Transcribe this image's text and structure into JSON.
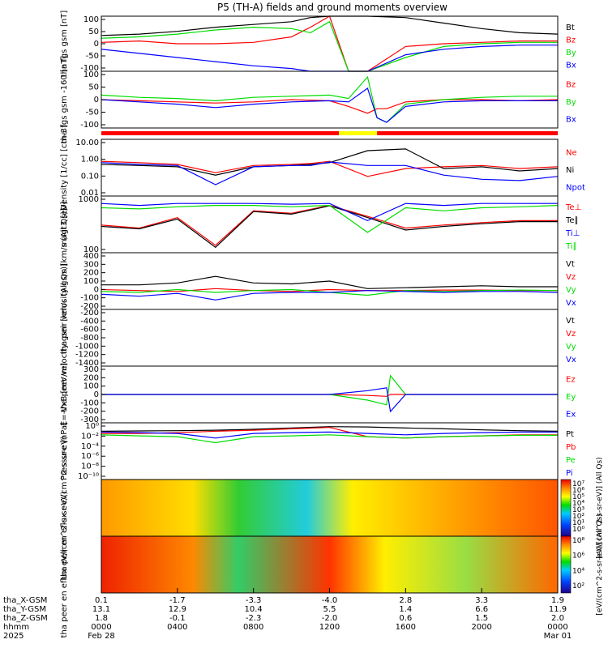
{
  "title": "P5 (TH-A) fields and ground moments overview",
  "colors": {
    "black": "#000000",
    "red": "#ff0000",
    "green": "#00dd00",
    "blue": "#0000ff",
    "yellow": "#ffff00",
    "white": "#ffffff"
  },
  "chart_data": [
    {
      "type": "line",
      "id": "fgs",
      "ylabel": "tha fgs gsm [nT]",
      "yticks": [
        "100",
        "50",
        "0",
        "-50",
        "-100"
      ],
      "ylim": [
        -100,
        100
      ],
      "series": [
        {
          "name": "Bt",
          "color": "#000000",
          "x": [
            0,
            2,
            4,
            6,
            8,
            10,
            11,
            12,
            13,
            14,
            16,
            18,
            20,
            22,
            24
          ],
          "values": [
            30,
            35,
            45,
            60,
            70,
            80,
            95,
            100,
            100,
            100,
            95,
            75,
            55,
            40,
            35
          ]
        },
        {
          "name": "Bz",
          "color": "#ff0000",
          "x": [
            0,
            2,
            4,
            6,
            8,
            10,
            11,
            12,
            13,
            14,
            16,
            18,
            20,
            22,
            24
          ],
          "values": [
            5,
            10,
            0,
            0,
            5,
            25,
            60,
            100,
            -100,
            -100,
            -10,
            0,
            5,
            10,
            10
          ]
        },
        {
          "name": "By",
          "color": "#00dd00",
          "x": [
            0,
            2,
            4,
            6,
            8,
            10,
            11,
            12,
            13,
            14,
            16,
            18,
            20,
            22,
            24
          ],
          "values": [
            20,
            25,
            35,
            50,
            60,
            55,
            40,
            80,
            -100,
            -100,
            -50,
            -10,
            0,
            5,
            5
          ]
        },
        {
          "name": "Bx",
          "color": "#0000ff",
          "x": [
            0,
            2,
            4,
            6,
            8,
            10,
            11,
            12,
            13,
            14,
            16,
            18,
            20,
            22,
            24
          ],
          "values": [
            -20,
            -35,
            -50,
            -65,
            -80,
            -90,
            -100,
            -100,
            -100,
            -100,
            -40,
            -20,
            -10,
            -5,
            -5
          ]
        }
      ]
    },
    {
      "type": "line",
      "id": "fgs_dsl",
      "ylabel": "tha fgs gsm -160 [nT]",
      "yticks": [
        "100",
        "50",
        "0",
        "-50",
        "-100"
      ],
      "ylim": [
        -125,
        125
      ],
      "series": [
        {
          "name": "Bz",
          "color": "#ff0000",
          "x": [
            0,
            2,
            4,
            6,
            8,
            10,
            12,
            13,
            14,
            14.5,
            15,
            16,
            18,
            20,
            22,
            24
          ],
          "values": [
            0,
            -5,
            -10,
            -15,
            -10,
            0,
            -5,
            -30,
            -60,
            -40,
            -40,
            -10,
            0,
            0,
            -5,
            0
          ]
        },
        {
          "name": "By",
          "color": "#00dd00",
          "x": [
            0,
            2,
            4,
            6,
            8,
            10,
            12,
            13,
            14,
            14.5,
            15,
            16,
            18,
            20,
            22,
            24
          ],
          "values": [
            20,
            10,
            5,
            -5,
            10,
            15,
            20,
            5,
            100,
            -80,
            -100,
            -20,
            0,
            10,
            15,
            15
          ]
        },
        {
          "name": "Bx",
          "color": "#0000ff",
          "x": [
            0,
            2,
            4,
            6,
            8,
            10,
            12,
            13,
            14,
            14.5,
            15,
            16,
            18,
            20,
            22,
            24
          ],
          "values": [
            0,
            -10,
            -20,
            -35,
            -20,
            -10,
            -5,
            -10,
            50,
            -80,
            -100,
            -30,
            -10,
            -5,
            -5,
            -5
          ]
        }
      ]
    },
    {
      "type": "line",
      "id": "density",
      "log": true,
      "ylabel": "Density [1/cc] [cm-3]",
      "yticks": [
        "10.00",
        "1.00",
        "0.10",
        "0.01"
      ],
      "ylim": [
        0.003,
        40
      ],
      "series": [
        {
          "name": "Ne",
          "color": "#ff0000",
          "x": [
            0,
            2,
            4,
            6,
            8,
            10,
            11,
            12,
            14,
            16,
            18,
            20,
            22,
            24
          ],
          "values": [
            1.0,
            0.8,
            0.6,
            0.15,
            0.5,
            0.6,
            0.7,
            1.0,
            0.08,
            0.3,
            0.4,
            0.5,
            0.3,
            0.4
          ]
        },
        {
          "name": "Ni",
          "color": "#000000",
          "x": [
            0,
            2,
            4,
            6,
            8,
            10,
            11,
            12,
            14,
            16,
            18,
            20,
            22,
            24
          ],
          "values": [
            0.6,
            0.5,
            0.4,
            0.1,
            0.4,
            0.5,
            0.6,
            0.8,
            6.0,
            8.0,
            0.3,
            0.4,
            0.2,
            0.3
          ]
        },
        {
          "name": "Npot",
          "color": "#0000ff",
          "x": [
            0,
            2,
            4,
            6,
            8,
            10,
            11,
            12,
            14,
            16,
            18,
            20,
            22,
            24
          ],
          "values": [
            0.8,
            0.6,
            0.5,
            0.02,
            0.4,
            0.5,
            0.5,
            0.9,
            0.5,
            0.5,
            0.1,
            0.05,
            0.04,
            0.08
          ]
        }
      ]
    },
    {
      "type": "line",
      "id": "temperature",
      "log": true,
      "ylabel": "magt3 [eV]",
      "yticks": [
        "1000",
        "100"
      ],
      "ylim": [
        30,
        6000
      ],
      "series": [
        {
          "name": "Te⊥",
          "color": "#ff0000",
          "x": [
            0,
            2,
            4,
            6,
            8,
            10,
            12,
            14,
            16,
            18,
            20,
            22,
            24
          ],
          "values": [
            400,
            300,
            800,
            60,
            1500,
            1200,
            2500,
            900,
            300,
            400,
            500,
            600,
            600
          ]
        },
        {
          "name": "Te∥",
          "color": "#000000",
          "x": [
            0,
            2,
            4,
            6,
            8,
            10,
            12,
            14,
            16,
            18,
            20,
            22,
            24
          ],
          "values": [
            350,
            280,
            700,
            50,
            1400,
            1100,
            2400,
            800,
            250,
            350,
            450,
            550,
            550
          ]
        },
        {
          "name": "Ti⊥",
          "color": "#0000ff",
          "x": [
            0,
            2,
            4,
            6,
            8,
            10,
            12,
            14,
            16,
            18,
            20,
            22,
            24
          ],
          "values": [
            3000,
            2500,
            3000,
            3000,
            3000,
            2800,
            3000,
            600,
            3000,
            2500,
            3000,
            3000,
            3000
          ]
        },
        {
          "name": "Ti∥",
          "color": "#00dd00",
          "x": [
            0,
            2,
            4,
            6,
            8,
            10,
            12,
            14,
            16,
            18,
            20,
            22,
            24
          ],
          "values": [
            2000,
            1800,
            2200,
            2500,
            2500,
            2200,
            2500,
            200,
            2000,
            1500,
            2000,
            2200,
            2500
          ]
        }
      ]
    },
    {
      "type": "line",
      "id": "peir_velocity",
      "ylabel": "tha peir velocity gsm [km/s (All Qs)]",
      "yticks": [
        "400",
        "300",
        "200",
        "100",
        "0",
        "-100",
        "-200"
      ],
      "ylim": [
        -200,
        400
      ],
      "series": [
        {
          "name": "Vt",
          "color": "#000000",
          "x": [
            0,
            2,
            4,
            6,
            8,
            10,
            12,
            14,
            16,
            18,
            20,
            22,
            24
          ],
          "values": [
            60,
            60,
            80,
            150,
            80,
            70,
            100,
            20,
            30,
            40,
            50,
            40,
            40
          ]
        },
        {
          "name": "Vz",
          "color": "#ff0000",
          "x": [
            0,
            2,
            4,
            6,
            8,
            10,
            12,
            14,
            16,
            18,
            20,
            22,
            24
          ],
          "values": [
            10,
            0,
            -10,
            20,
            0,
            -10,
            10,
            0,
            0,
            5,
            5,
            0,
            0
          ]
        },
        {
          "name": "Vy",
          "color": "#00dd00",
          "x": [
            0,
            2,
            4,
            6,
            8,
            10,
            12,
            14,
            16,
            18,
            20,
            22,
            24
          ],
          "values": [
            -10,
            -20,
            10,
            -20,
            0,
            10,
            -20,
            -50,
            0,
            -10,
            0,
            5,
            0
          ]
        },
        {
          "name": "Vx",
          "color": "#0000ff",
          "x": [
            0,
            2,
            4,
            6,
            8,
            10,
            12,
            14,
            16,
            18,
            20,
            22,
            24
          ],
          "values": [
            -40,
            -60,
            -30,
            -100,
            -30,
            -20,
            -20,
            0,
            -10,
            -20,
            -10,
            -10,
            -20
          ]
        }
      ]
    },
    {
      "type": "line",
      "id": "peer_velocity",
      "ylabel": "tha peer velocity gsm [km/s (All Qs)]",
      "yticks": [
        "-200",
        "-400",
        "-600",
        "-800",
        "-1000",
        "-1200",
        "-1400"
      ],
      "ylim": [
        -1400,
        -100
      ],
      "series": [
        {
          "name": "Vt",
          "color": "#000000",
          "x": [],
          "values": []
        },
        {
          "name": "Vz",
          "color": "#ff0000",
          "x": [],
          "values": []
        },
        {
          "name": "Vy",
          "color": "#00dd00",
          "x": [],
          "values": []
        },
        {
          "name": "Vx",
          "color": "#0000ff",
          "x": [],
          "values": []
        }
      ]
    },
    {
      "type": "line",
      "id": "efield",
      "ylabel": "E=-VxB [mV/m]",
      "yticks": [
        "300",
        "200",
        "100",
        "0",
        "-100",
        "-200",
        "-300"
      ],
      "ylim": [
        -300,
        300
      ],
      "series": [
        {
          "name": "Ez",
          "color": "#ff0000",
          "x": [
            0,
            4,
            8,
            12,
            14,
            15,
            15.2,
            16,
            20,
            24
          ],
          "values": [
            0,
            0,
            0,
            0,
            -10,
            -20,
            0,
            0,
            0,
            0
          ]
        },
        {
          "name": "Ey",
          "color": "#00dd00",
          "x": [
            0,
            4,
            8,
            12,
            14,
            15,
            15.2,
            16,
            20,
            24
          ],
          "values": [
            0,
            0,
            0,
            0,
            -60,
            -110,
            200,
            0,
            0,
            0
          ]
        },
        {
          "name": "Ex",
          "color": "#0000ff",
          "x": [
            0,
            4,
            8,
            12,
            14,
            15,
            15.2,
            16,
            20,
            24
          ],
          "values": [
            0,
            0,
            0,
            0,
            40,
            70,
            -180,
            0,
            0,
            0
          ]
        }
      ]
    },
    {
      "type": "line",
      "id": "pressure",
      "log": true,
      "ylabel": "Pressure [nPa]",
      "yticks": [
        "10⁰",
        "10⁻²",
        "10⁻⁴",
        "10⁻⁶",
        "10⁻⁸",
        "10⁻¹⁰"
      ],
      "ylim": [
        1e-11,
        20
      ],
      "series": [
        {
          "name": "Pt",
          "color": "#000000",
          "x": [
            0,
            2,
            4,
            6,
            8,
            10,
            12,
            14,
            16,
            18,
            20,
            22,
            24
          ],
          "values": [
            0.3,
            0.35,
            0.4,
            0.5,
            0.8,
            1.5,
            3,
            2.5,
            1.5,
            1.0,
            0.6,
            0.4,
            0.3
          ]
        },
        {
          "name": "Pb",
          "color": "#ff0000",
          "x": [
            0,
            2,
            4,
            6,
            8,
            10,
            12,
            14,
            16,
            18,
            20,
            22,
            24
          ],
          "values": [
            0.1,
            0.1,
            0.15,
            0.3,
            0.5,
            1.0,
            2.0,
            0.02,
            0.01,
            0.02,
            0.03,
            0.05,
            0.05
          ]
        },
        {
          "name": "Pe",
          "color": "#00dd00",
          "x": [
            0,
            2,
            4,
            6,
            8,
            10,
            12,
            14,
            16,
            18,
            20,
            22,
            24
          ],
          "values": [
            0.05,
            0.03,
            0.02,
            0.001,
            0.02,
            0.03,
            0.05,
            0.02,
            0.01,
            0.02,
            0.03,
            0.04,
            0.04
          ]
        },
        {
          "name": "Pi",
          "color": "#0000ff",
          "x": [
            0,
            2,
            4,
            6,
            8,
            10,
            12,
            14,
            16,
            18,
            20,
            22,
            24
          ],
          "values": [
            0.2,
            0.15,
            0.1,
            0.01,
            0.1,
            0.15,
            0.2,
            0.1,
            0.05,
            0.1,
            0.15,
            0.2,
            0.2
          ]
        }
      ]
    },
    {
      "type": "heatmap",
      "id": "peir_eflux",
      "ylabel": "tha peir en eflux eV/(cm^2-s-sr-eV)",
      "yticks": [
        "10000",
        "1000",
        "100",
        "10"
      ],
      "colorbar_ticks": [
        "10⁷",
        "10⁶",
        "10⁵",
        "10⁴",
        "10³",
        "10²",
        "10¹",
        "10⁰"
      ],
      "colorbar_label": "[eV/(cm^2-s-sr-eV)] (All Qs)"
    },
    {
      "type": "heatmap",
      "id": "peer_eflux",
      "ylabel": "tha peer en eflux eV/(cm^2-s-sr-eV)",
      "yticks": [
        "10000",
        "1000",
        "100",
        "10"
      ],
      "colorbar_ticks": [
        "10⁸",
        "10⁶",
        "10⁴",
        "10²"
      ],
      "colorbar_label": "[eV/(cm^2-s-sr-eV)] (All Qs)"
    }
  ],
  "bottom_axis": {
    "row_labels": [
      "tha_X-GSM",
      "tha_Y-GSM",
      "tha_Z-GSM",
      "hhmm",
      "2025"
    ],
    "columns": [
      {
        "x": "0.1",
        "y": "13.1",
        "z": "1.8",
        "time": "0000",
        "date": "Feb 28"
      },
      {
        "x": "-1.7",
        "y": "12.9",
        "z": "-0.1",
        "time": "0400",
        "date": ""
      },
      {
        "x": "-3.3",
        "y": "10.4",
        "z": "-2.3",
        "time": "0800",
        "date": ""
      },
      {
        "x": "-4.0",
        "y": "5.5",
        "z": "-2.0",
        "time": "1200",
        "date": ""
      },
      {
        "x": "2.8",
        "y": "1.4",
        "z": "0.6",
        "time": "1600",
        "date": ""
      },
      {
        "x": "3.3",
        "y": "6.6",
        "z": "1.5",
        "time": "2000",
        "date": ""
      },
      {
        "x": "1.9",
        "y": "11.9",
        "z": "2.0",
        "time": "0000",
        "date": "Mar 01"
      }
    ]
  }
}
